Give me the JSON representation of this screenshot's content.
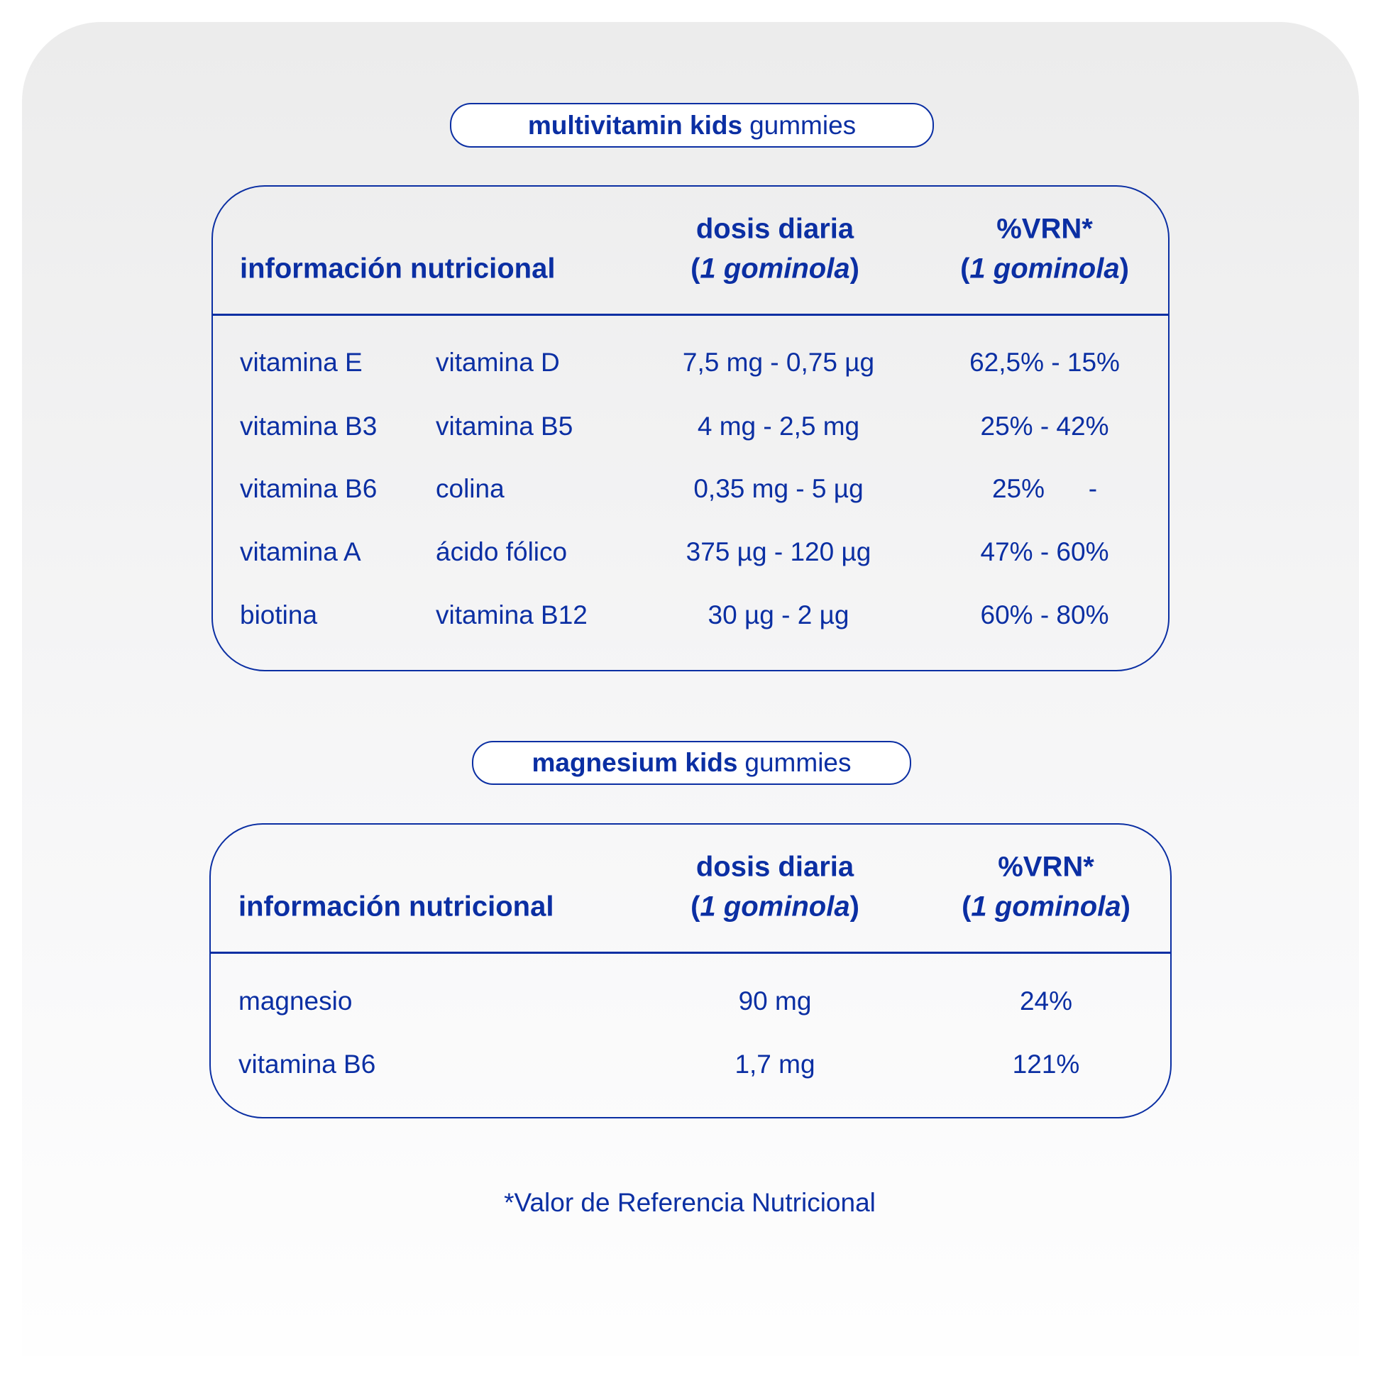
{
  "colors": {
    "accent": "#0b2fa3"
  },
  "multivitamin": {
    "title_bold": "multivitamin kids",
    "title_regular": "gummies",
    "header": {
      "col1": "información nutricional",
      "dose_line1": "dosis diaria",
      "dose_line2": "1 gominola",
      "vrn_line1": "%VRN*",
      "vrn_line2": "1 gominola"
    },
    "rows": [
      {
        "a": "vitamina E",
        "b": "vitamina D",
        "dose": "7,5 mg - 0,75 µg",
        "vrn": "62,5% - 15%"
      },
      {
        "a": "vitamina B3",
        "b": "vitamina B5",
        "dose": "4 mg - 2,5 mg",
        "vrn": "25% - 42%"
      },
      {
        "a": "vitamina B6",
        "b": "colina",
        "dose": "0,35 mg - 5 µg",
        "vrn": "25%      -"
      },
      {
        "a": "vitamina A",
        "b": "ácido fólico",
        "dose": "375 µg - 120 µg",
        "vrn": "47% - 60%"
      },
      {
        "a": "biotina",
        "b": "vitamina B12",
        "dose": "30 µg - 2 µg",
        "vrn": "60% - 80%"
      }
    ]
  },
  "magnesium": {
    "title_bold": "magnesium kids",
    "title_regular": "gummies",
    "header": {
      "col1": "información nutricional",
      "dose_line1": "dosis diaria",
      "dose_line2": "1 gominola",
      "vrn_line1": "%VRN*",
      "vrn_line2": "1 gominola"
    },
    "rows": [
      {
        "a": "magnesio",
        "dose": "90 mg",
        "vrn": "24%"
      },
      {
        "a": "vitamina B6",
        "dose": "1,7 mg",
        "vrn": "121%"
      }
    ]
  },
  "footnote": "*Valor de Referencia Nutricional"
}
